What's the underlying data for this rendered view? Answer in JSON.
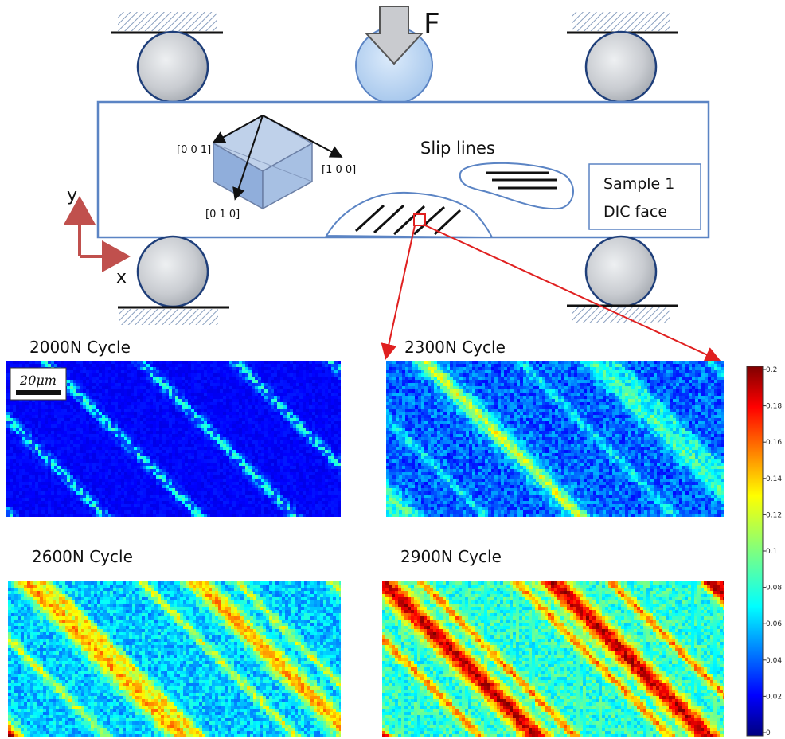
{
  "diagram": {
    "force_label": "F",
    "axis_y_label": "y",
    "axis_x_label": "x",
    "direction_001": "[0 0 1]",
    "direction_100": "[1 0 0]",
    "direction_010": "[0 1 0]",
    "slip_lines_label": "Slip lines",
    "sample_label_line1": "Sample 1",
    "sample_label_line2": "DIC face"
  },
  "panels": [
    {
      "title": "2000N Cycle",
      "level": 0.1
    },
    {
      "title": "2300N Cycle",
      "level": 0.4
    },
    {
      "title": "2600N Cycle",
      "level": 0.7
    },
    {
      "title": "2900N Cycle",
      "level": 0.95
    }
  ],
  "scalebar": {
    "label": "20μm"
  },
  "colorbar": {
    "colormap": "jet",
    "min": 0,
    "max": 0.2,
    "ticks": [
      "0.2",
      "0.18",
      "0.16",
      "0.14",
      "0.12",
      "0.1",
      "0.08",
      "0.06",
      "0.04",
      "0.02",
      "0"
    ]
  },
  "colors": {
    "sample_border": "#5b84c4",
    "roller_fill": "#c9ccd1",
    "loader_fill": "#b9d4f1",
    "arrow_red": "#e02020",
    "axis_red": "#c0504d"
  }
}
